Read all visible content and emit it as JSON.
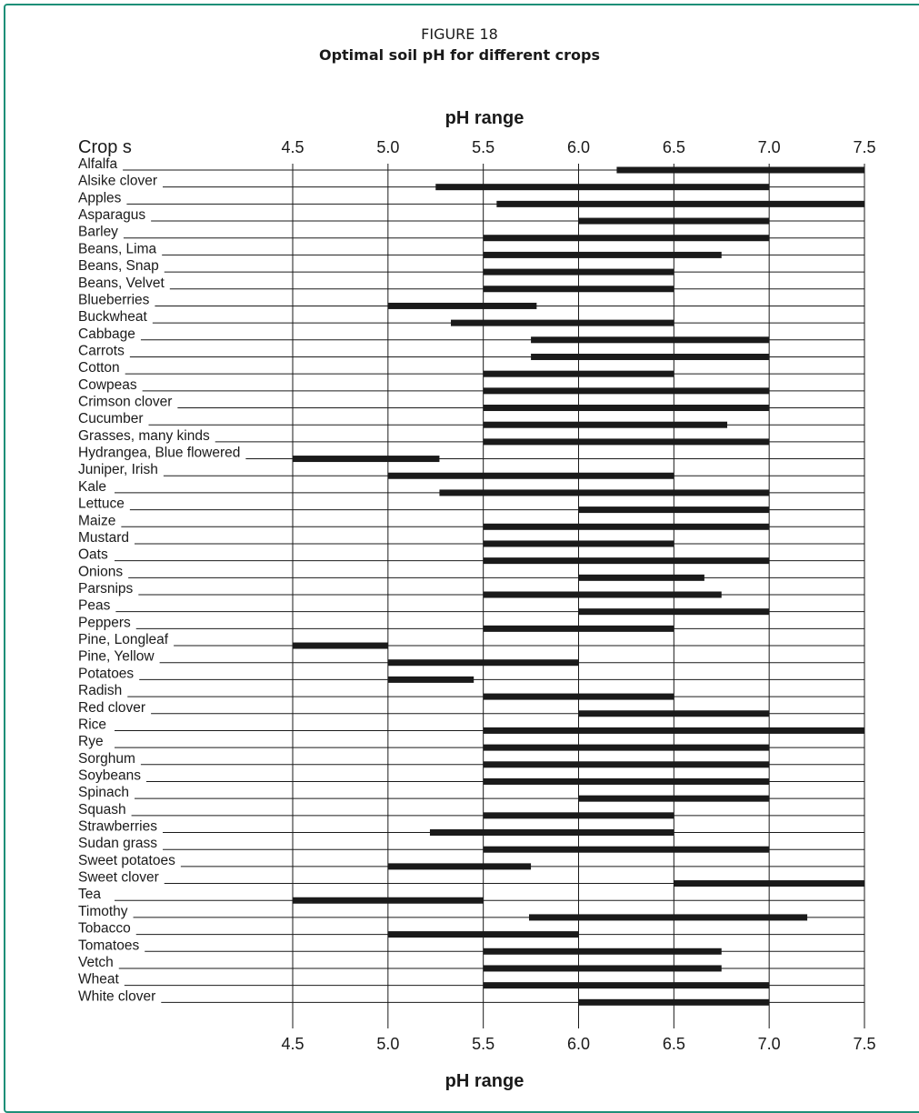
{
  "figure": {
    "label": "FIGURE 18",
    "title": "Optimal soil pH for different crops"
  },
  "chart_data": {
    "type": "bar",
    "orientation": "horizontal-range",
    "xlabel": "pH range",
    "category_header": "Crop s",
    "xlim": [
      4.5,
      7.5
    ],
    "ticks": [
      "4.5",
      "5.0",
      "5.5",
      "6.0",
      "6.5",
      "7.0",
      "7.5"
    ],
    "grid": true,
    "bar_color": "#1a1a1a",
    "ranges": [
      {
        "crop": "Alfalfa",
        "low": 6.2,
        "high": 7.5
      },
      {
        "crop": "Alsike clover",
        "low": 5.25,
        "high": 7.0
      },
      {
        "crop": "Apples",
        "low": 5.57,
        "high": 7.5
      },
      {
        "crop": "Asparagus",
        "low": 6.0,
        "high": 7.0
      },
      {
        "crop": "Barley",
        "low": 5.5,
        "high": 7.0
      },
      {
        "crop": "Beans, Lima",
        "low": 5.5,
        "high": 6.75
      },
      {
        "crop": "Beans, Snap",
        "low": 5.5,
        "high": 6.5
      },
      {
        "crop": "Beans, Velvet",
        "low": 5.5,
        "high": 6.5
      },
      {
        "crop": "Blueberries",
        "low": 5.0,
        "high": 5.78
      },
      {
        "crop": "Buckwheat",
        "low": 5.33,
        "high": 6.5
      },
      {
        "crop": "Cabbage",
        "low": 5.75,
        "high": 7.0
      },
      {
        "crop": "Carrots",
        "low": 5.75,
        "high": 7.0
      },
      {
        "crop": "Cotton",
        "low": 5.5,
        "high": 6.5
      },
      {
        "crop": "Cowpeas",
        "low": 5.5,
        "high": 7.0
      },
      {
        "crop": "Crimson clover",
        "low": 5.5,
        "high": 7.0
      },
      {
        "crop": "Cucumber",
        "low": 5.5,
        "high": 6.78
      },
      {
        "crop": "Grasses, many kinds",
        "low": 5.5,
        "high": 7.0
      },
      {
        "crop": "Hydrangea, Blue flowered",
        "low": 4.5,
        "high": 5.27
      },
      {
        "crop": "Juniper, Irish",
        "low": 5.0,
        "high": 6.5
      },
      {
        "crop": "Kale",
        "low": 5.27,
        "high": 7.0
      },
      {
        "crop": "Lettuce",
        "low": 6.0,
        "high": 7.0
      },
      {
        "crop": "Maize",
        "low": 5.5,
        "high": 7.0
      },
      {
        "crop": "Mustard",
        "low": 5.5,
        "high": 6.5
      },
      {
        "crop": "Oats",
        "low": 5.5,
        "high": 7.0
      },
      {
        "crop": "Onions",
        "low": 6.0,
        "high": 6.66
      },
      {
        "crop": "Parsnips",
        "low": 5.5,
        "high": 6.75
      },
      {
        "crop": "Peas",
        "low": 6.0,
        "high": 7.0
      },
      {
        "crop": "Peppers",
        "low": 5.5,
        "high": 6.5
      },
      {
        "crop": "Pine, Longleaf",
        "low": 4.5,
        "high": 5.0
      },
      {
        "crop": "Pine, Yellow",
        "low": 5.0,
        "high": 6.0
      },
      {
        "crop": "Potatoes",
        "low": 5.0,
        "high": 5.45
      },
      {
        "crop": "Radish",
        "low": 5.5,
        "high": 6.5
      },
      {
        "crop": "Red clover",
        "low": 6.0,
        "high": 7.0
      },
      {
        "crop": "Rice",
        "low": 5.5,
        "high": 7.5
      },
      {
        "crop": "Rye",
        "low": 5.5,
        "high": 7.0
      },
      {
        "crop": "Sorghum",
        "low": 5.5,
        "high": 7.0
      },
      {
        "crop": "Soybeans",
        "low": 5.5,
        "high": 7.0
      },
      {
        "crop": "Spinach",
        "low": 6.0,
        "high": 7.0
      },
      {
        "crop": "Squash",
        "low": 5.5,
        "high": 6.5
      },
      {
        "crop": "Strawberries",
        "low": 5.22,
        "high": 6.5
      },
      {
        "crop": "Sudan grass",
        "low": 5.5,
        "high": 7.0
      },
      {
        "crop": "Sweet potatoes",
        "low": 5.0,
        "high": 5.75
      },
      {
        "crop": "Sweet clover",
        "low": 6.5,
        "high": 7.5
      },
      {
        "crop": "Tea",
        "low": 4.5,
        "high": 5.5
      },
      {
        "crop": "Timothy",
        "low": 5.74,
        "high": 7.2
      },
      {
        "crop": "Tobacco",
        "low": 5.0,
        "high": 6.0
      },
      {
        "crop": "Tomatoes",
        "low": 5.5,
        "high": 6.75
      },
      {
        "crop": "Vetch",
        "low": 5.5,
        "high": 6.75
      },
      {
        "crop": "Wheat",
        "low": 5.5,
        "high": 7.0
      },
      {
        "crop": "White clover",
        "low": 6.0,
        "high": 7.0
      }
    ]
  }
}
